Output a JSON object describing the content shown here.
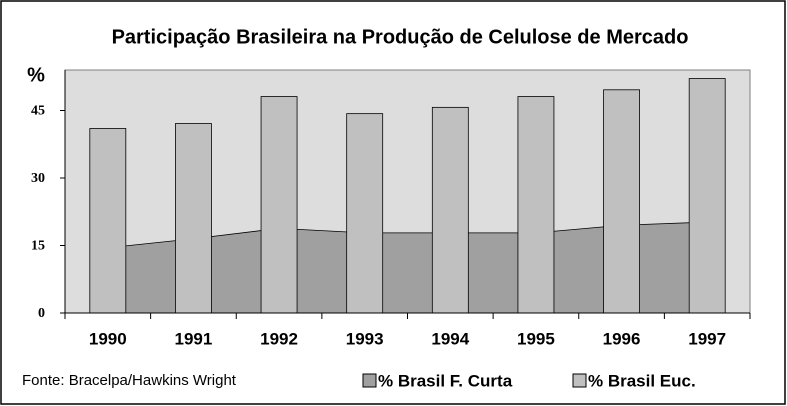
{
  "chart_data": {
    "type": "bar_area",
    "title": "Participação Brasileira na Produção de Celulose de Mercado",
    "y_label": "%",
    "source": "Fonte: Bracelpa/Hawkins Wright",
    "categories": [
      "1990",
      "1991",
      "1992",
      "1993",
      "1994",
      "1995",
      "1996",
      "1997"
    ],
    "series": [
      {
        "name": "% Brasil F. Curta",
        "kind": "area",
        "color": "#a0a0a0",
        "values": [
          14.5,
          16.5,
          18.8,
          17.8,
          17.8,
          17.8,
          19.5,
          20.2
        ]
      },
      {
        "name": "% Brasil Euc.",
        "kind": "bar",
        "color": "#c0c0c0",
        "values": [
          41,
          42.1,
          48.1,
          44.3,
          45.7,
          48.1,
          49.6,
          52.1
        ]
      }
    ],
    "ylim": [
      0,
      54
    ],
    "yticks": [
      0,
      15,
      30,
      45
    ],
    "plot_background": "#dddddd"
  }
}
